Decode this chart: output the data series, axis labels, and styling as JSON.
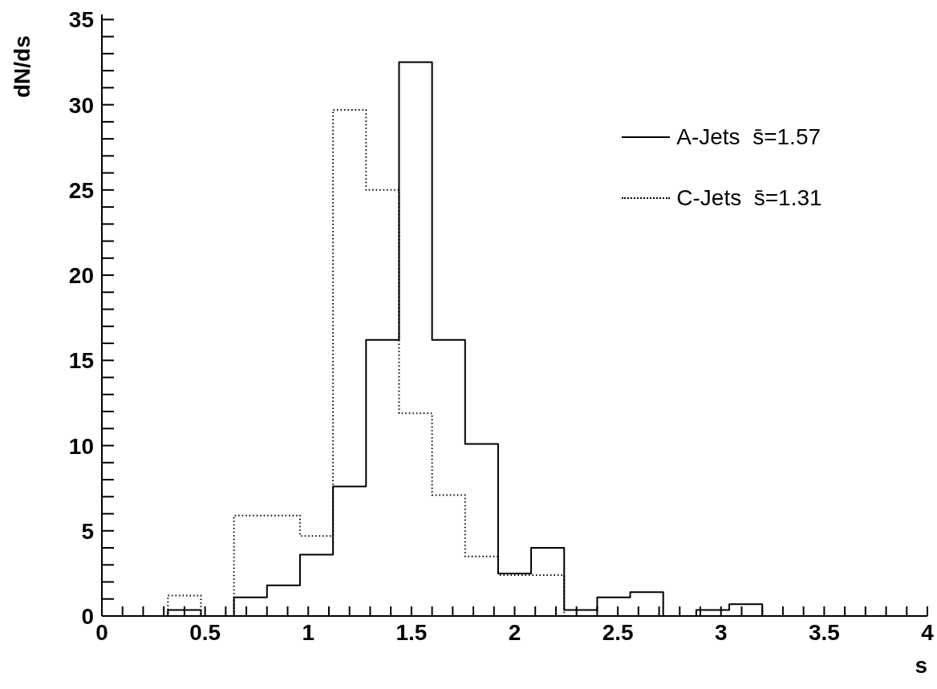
{
  "chart_data": {
    "type": "step",
    "xlabel": "s",
    "ylabel": "dN/ds",
    "x": [
      0,
      0.16,
      0.32,
      0.48,
      0.64,
      0.8,
      0.96,
      1.12,
      1.28,
      1.44,
      1.6,
      1.76,
      1.92,
      2.08,
      2.24,
      2.4,
      2.56,
      2.72,
      2.88,
      3.04,
      3.2,
      3.36,
      3.52,
      3.68,
      3.84
    ],
    "series": [
      {
        "name": "A-Jets  s̄=1.57",
        "color": "#000000",
        "line_style": "solid",
        "values": [
          0,
          0,
          0.35,
          0,
          1.1,
          1.8,
          3.6,
          7.6,
          16.2,
          32.5,
          16.2,
          10.1,
          2.5,
          4.0,
          0.35,
          1.1,
          1.4,
          0,
          0.35,
          0.7,
          0,
          0,
          0,
          0,
          0
        ]
      },
      {
        "name": "C-Jets  s̄=1.31",
        "color": "#000000",
        "line_style": "dotted",
        "values": [
          0,
          0,
          1.2,
          0,
          5.9,
          5.9,
          4.7,
          29.7,
          25.0,
          11.9,
          7.1,
          3.5,
          2.4,
          2.4,
          0,
          0,
          0,
          0,
          0,
          0,
          0,
          0,
          0,
          0,
          0
        ]
      }
    ],
    "xlim": [
      0,
      4
    ],
    "xticks": [
      0,
      {
        "value": 0.1,
        "label": null
      },
      {
        "value": 0.2,
        "label": null
      },
      {
        "value": 0.3,
        "label": null
      },
      {
        "value": 0.4,
        "label": null
      },
      0.5,
      {
        "value": 0.6,
        "label": null
      },
      {
        "value": 0.7,
        "label": null
      },
      {
        "value": 0.8,
        "label": null
      },
      {
        "value": 0.9,
        "label": null
      },
      1,
      {
        "value": 1.1,
        "label": null
      },
      {
        "value": 1.2,
        "label": null
      },
      {
        "value": 1.3,
        "label": null
      },
      {
        "value": 1.4,
        "label": null
      },
      1.5,
      {
        "value": 1.6,
        "label": null
      },
      {
        "value": 1.7,
        "label": null
      },
      {
        "value": 1.8,
        "label": null
      },
      {
        "value": 1.9,
        "label": null
      },
      2,
      {
        "value": 2.1,
        "label": null
      },
      {
        "value": 2.2,
        "label": null
      },
      {
        "value": 2.3,
        "label": null
      },
      {
        "value": 2.4,
        "label": null
      },
      2.5,
      {
        "value": 2.6,
        "label": null
      },
      {
        "value": 2.7,
        "label": null
      },
      {
        "value": 2.8,
        "label": null
      },
      {
        "value": 2.9,
        "label": null
      },
      3,
      {
        "value": 3.1,
        "label": null
      },
      {
        "value": 3.2,
        "label": null
      },
      {
        "value": 3.3,
        "label": null
      },
      {
        "value": 3.4,
        "label": null
      },
      3.5,
      {
        "value": 3.6,
        "label": null
      },
      {
        "value": 3.7,
        "label": null
      },
      {
        "value": 3.8,
        "label": null
      },
      {
        "value": 3.9,
        "label": null
      },
      4
    ],
    "ylim": [
      0,
      35.3
    ],
    "yticks": [
      0,
      {
        "value": 1,
        "label": null
      },
      {
        "value": 2,
        "label": null
      },
      {
        "value": 3,
        "label": null
      },
      {
        "value": 4,
        "label": null
      },
      5,
      {
        "value": 6,
        "label": null
      },
      {
        "value": 7,
        "label": null
      },
      {
        "value": 8,
        "label": null
      },
      {
        "value": 9,
        "label": null
      },
      10,
      {
        "value": 11,
        "label": null
      },
      {
        "value": 12,
        "label": null
      },
      {
        "value": 13,
        "label": null
      },
      {
        "value": 14,
        "label": null
      },
      15,
      {
        "value": 16,
        "label": null
      },
      {
        "value": 17,
        "label": null
      },
      {
        "value": 18,
        "label": null
      },
      {
        "value": 19,
        "label": null
      },
      20,
      {
        "value": 21,
        "label": null
      },
      {
        "value": 22,
        "label": null
      },
      {
        "value": 23,
        "label": null
      },
      {
        "value": 24,
        "label": null
      },
      25,
      {
        "value": 26,
        "label": null
      },
      {
        "value": 27,
        "label": null
      },
      {
        "value": 28,
        "label": null
      },
      {
        "value": 29,
        "label": null
      },
      30,
      {
        "value": 31,
        "label": null
      },
      {
        "value": 32,
        "label": null
      },
      {
        "value": 33,
        "label": null
      },
      {
        "value": 34,
        "label": null
      },
      35
    ],
    "grid": false,
    "legend": "top right"
  }
}
